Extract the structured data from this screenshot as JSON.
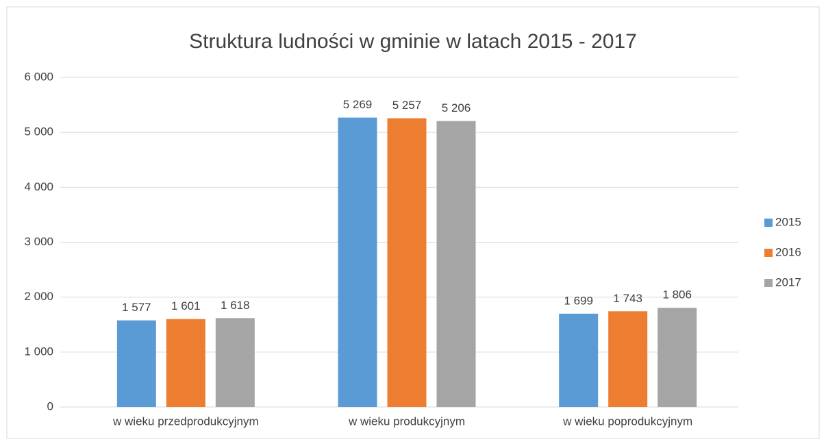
{
  "chart_data": {
    "type": "bar",
    "title": "Struktura ludności w gminie w latach 2015 - 2017",
    "categories": [
      "w wieku przedprodukcyjnym",
      "w wieku produkcyjnym",
      "w wieku poprodukcyjnym"
    ],
    "series": [
      {
        "name": "2015",
        "color": "#5b9bd5",
        "values": [
          1577,
          5269,
          1699
        ],
        "value_labels": [
          "1 577",
          "5 269",
          "1 699"
        ]
      },
      {
        "name": "2016",
        "color": "#ed7d31",
        "values": [
          1601,
          5257,
          1743
        ],
        "value_labels": [
          "1 601",
          "5 257",
          "1 743"
        ]
      },
      {
        "name": "2017",
        "color": "#a5a5a5",
        "values": [
          1618,
          5206,
          1806
        ],
        "value_labels": [
          "1 618",
          "5 206",
          "1 806"
        ]
      }
    ],
    "ylim": [
      0,
      6000
    ],
    "yticks": [
      0,
      {
        "value": 1000,
        "label": "1 000"
      },
      {
        "value": 2000,
        "label": "2 000"
      },
      {
        "value": 3000,
        "label": "3 000"
      },
      {
        "value": 4000,
        "label": "4 000"
      },
      {
        "value": 5000,
        "label": "5 000"
      },
      {
        "value": 6000,
        "label": "6 000"
      }
    ],
    "grid": true,
    "legend": "right"
  }
}
